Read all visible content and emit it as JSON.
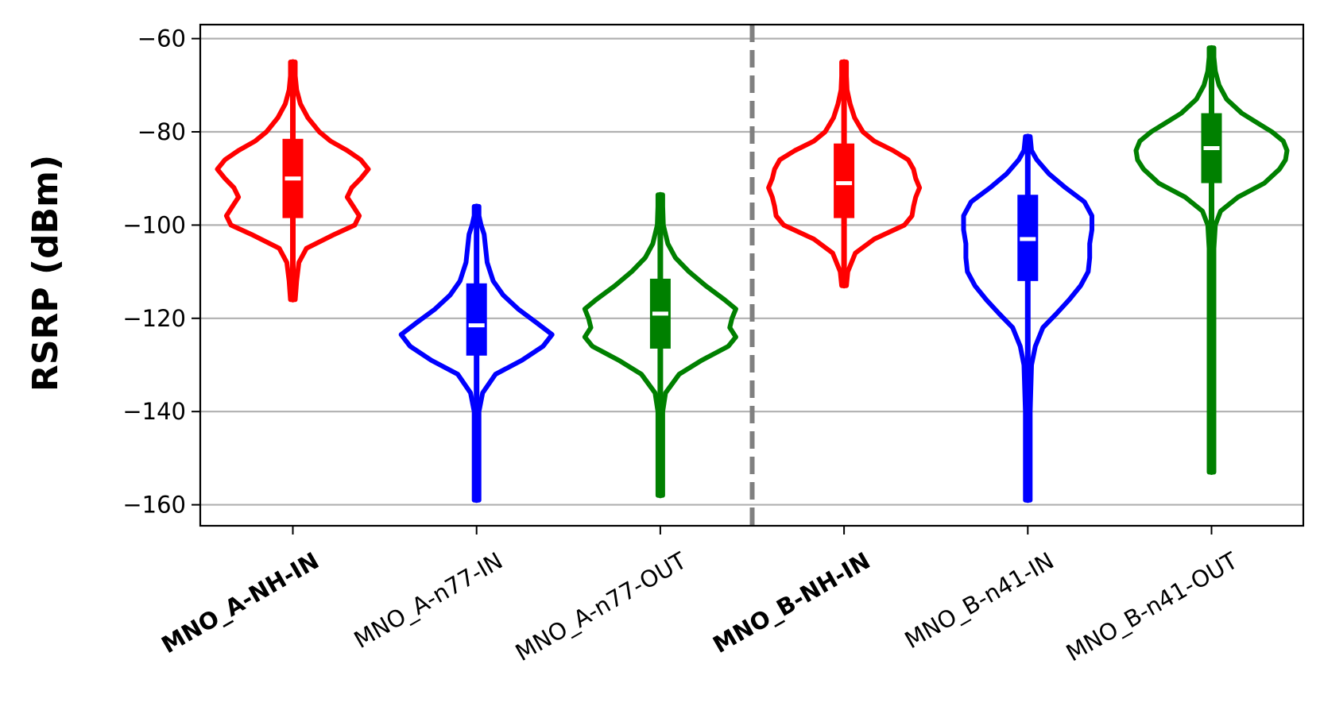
{
  "chart_data": {
    "type": "violin",
    "title": "",
    "xlabel": "",
    "ylabel": "RSRP (dBm)",
    "ylim": [
      -164.5,
      -57
    ],
    "yticks": [
      -60,
      -80,
      -100,
      -120,
      -140,
      -160
    ],
    "ytick_labels": [
      "−60",
      "−80",
      "−100",
      "−120",
      "−140",
      "−160"
    ],
    "grid": "horizontal",
    "separator_after_index": 2,
    "categories": [
      {
        "label": "MNO_A-NH-IN",
        "bold": true,
        "color": "#ff0000",
        "min": -116,
        "max": -65,
        "q1": -98.5,
        "q3": -81.5,
        "median": -90,
        "density": [
          [
            -116,
            0.02
          ],
          [
            -112,
            0.05
          ],
          [
            -108,
            0.08
          ],
          [
            -105,
            0.18
          ],
          [
            -102,
            0.55
          ],
          [
            -100,
            0.82
          ],
          [
            -98,
            0.88
          ],
          [
            -96,
            0.8
          ],
          [
            -94,
            0.72
          ],
          [
            -92,
            0.78
          ],
          [
            -90,
            0.9
          ],
          [
            -88,
            1.0
          ],
          [
            -86,
            0.9
          ],
          [
            -84,
            0.72
          ],
          [
            -82,
            0.5
          ],
          [
            -80,
            0.35
          ],
          [
            -77,
            0.2
          ],
          [
            -74,
            0.1
          ],
          [
            -71,
            0.05
          ],
          [
            -68,
            0.03
          ],
          [
            -65,
            0.02
          ]
        ]
      },
      {
        "label": "MNO_A-n77-IN",
        "bold": false,
        "color": "#0000ff",
        "min": -159,
        "max": -96,
        "q1": -128,
        "q3": -112.5,
        "median": -121.5,
        "density": [
          [
            -159,
            0.02
          ],
          [
            -150,
            0.02
          ],
          [
            -140,
            0.03
          ],
          [
            -136,
            0.08
          ],
          [
            -132,
            0.25
          ],
          [
            -129,
            0.6
          ],
          [
            -126,
            0.88
          ],
          [
            -123.5,
            1.0
          ],
          [
            -121,
            0.8
          ],
          [
            -118,
            0.55
          ],
          [
            -115,
            0.35
          ],
          [
            -112,
            0.22
          ],
          [
            -108,
            0.14
          ],
          [
            -105,
            0.12
          ],
          [
            -102,
            0.1
          ],
          [
            -100,
            0.06
          ],
          [
            -98,
            0.03
          ],
          [
            -96,
            0.02
          ]
        ]
      },
      {
        "label": "MNO_A-n77-OUT",
        "bold": false,
        "color": "#008000",
        "min": -158,
        "max": -93.5,
        "q1": -126.5,
        "q3": -111.5,
        "median": -119,
        "density": [
          [
            -158,
            0.02
          ],
          [
            -150,
            0.02
          ],
          [
            -140,
            0.03
          ],
          [
            -136,
            0.07
          ],
          [
            -132,
            0.25
          ],
          [
            -129,
            0.55
          ],
          [
            -126,
            0.9
          ],
          [
            -124,
            1.0
          ],
          [
            -122,
            0.92
          ],
          [
            -120,
            0.95
          ],
          [
            -118,
            1.0
          ],
          [
            -116,
            0.85
          ],
          [
            -113,
            0.6
          ],
          [
            -110,
            0.38
          ],
          [
            -107,
            0.2
          ],
          [
            -104,
            0.1
          ],
          [
            -100,
            0.04
          ],
          [
            -96,
            0.02
          ],
          [
            -93.5,
            0.01
          ]
        ]
      },
      {
        "label": "MNO_B-NH-IN",
        "bold": true,
        "color": "#ff0000",
        "min": -113,
        "max": -65,
        "q1": -98.5,
        "q3": -82.5,
        "median": -91,
        "density": [
          [
            -113,
            0.02
          ],
          [
            -110,
            0.05
          ],
          [
            -106,
            0.15
          ],
          [
            -103,
            0.4
          ],
          [
            -100,
            0.8
          ],
          [
            -98,
            0.9
          ],
          [
            -96,
            0.92
          ],
          [
            -94,
            0.95
          ],
          [
            -92,
            1.0
          ],
          [
            -90,
            0.95
          ],
          [
            -88,
            0.92
          ],
          [
            -86,
            0.85
          ],
          [
            -84,
            0.65
          ],
          [
            -82,
            0.4
          ],
          [
            -80,
            0.25
          ],
          [
            -77,
            0.14
          ],
          [
            -74,
            0.08
          ],
          [
            -71,
            0.04
          ],
          [
            -68,
            0.03
          ],
          [
            -65,
            0.02
          ]
        ]
      },
      {
        "label": "MNO_B-n41-IN",
        "bold": false,
        "color": "#0000ff",
        "min": -159,
        "max": -81,
        "q1": -112,
        "q3": -93.5,
        "median": -103,
        "density": [
          [
            -159,
            0.02
          ],
          [
            -150,
            0.02
          ],
          [
            -140,
            0.03
          ],
          [
            -130,
            0.05
          ],
          [
            -126,
            0.1
          ],
          [
            -122,
            0.2
          ],
          [
            -119,
            0.38
          ],
          [
            -116,
            0.55
          ],
          [
            -113,
            0.7
          ],
          [
            -110,
            0.8
          ],
          [
            -107,
            0.82
          ],
          [
            -104,
            0.82
          ],
          [
            -101,
            0.85
          ],
          [
            -98,
            0.85
          ],
          [
            -95,
            0.75
          ],
          [
            -92,
            0.5
          ],
          [
            -89,
            0.28
          ],
          [
            -86,
            0.12
          ],
          [
            -84,
            0.05
          ],
          [
            -81,
            0.02
          ]
        ]
      },
      {
        "label": "MNO_B-n41-OUT",
        "bold": false,
        "color": "#008000",
        "min": -153,
        "max": -62,
        "q1": -91,
        "q3": -76,
        "median": -83.5,
        "density": [
          [
            -153,
            0.02
          ],
          [
            -145,
            0.02
          ],
          [
            -130,
            0.02
          ],
          [
            -115,
            0.03
          ],
          [
            -105,
            0.03
          ],
          [
            -100,
            0.05
          ],
          [
            -97,
            0.12
          ],
          [
            -94,
            0.35
          ],
          [
            -91,
            0.7
          ],
          [
            -88,
            0.9
          ],
          [
            -86,
            0.98
          ],
          [
            -84,
            1.0
          ],
          [
            -82,
            0.95
          ],
          [
            -80,
            0.8
          ],
          [
            -78,
            0.6
          ],
          [
            -76,
            0.4
          ],
          [
            -73,
            0.2
          ],
          [
            -70,
            0.1
          ],
          [
            -67,
            0.05
          ],
          [
            -64,
            0.03
          ],
          [
            -62,
            0.02
          ]
        ]
      }
    ]
  }
}
